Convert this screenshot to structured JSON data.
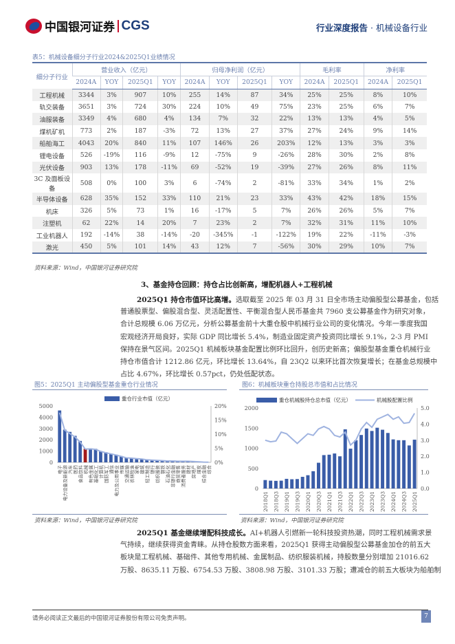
{
  "header": {
    "logo_cn": "中国银河证券",
    "logo_en": "CGS",
    "report_type": "行业深度报告",
    "separator": "·",
    "industry": "机械设备行业"
  },
  "table": {
    "title": "表5：机械设备细分子行业2024&2025Q1业绩情况",
    "row_header": "细分子行业",
    "groups": [
      "营业收入（亿元）",
      "归母净利润（亿元）",
      "毛利率",
      "净利率"
    ],
    "subheaders": [
      "2024A",
      "YOY",
      "2025Q1",
      "YOY",
      "2024A",
      "YOY",
      "2025Q1",
      "YOY",
      "2024A",
      "2025Q1",
      "2024A",
      "2025Q1"
    ],
    "rows": [
      [
        "工程机械",
        "3344",
        "3%",
        "907",
        "10%",
        "255",
        "14%",
        "87",
        "34%",
        "25%",
        "25%",
        "8%",
        "10%"
      ],
      [
        "轨交装备",
        "3651",
        "3%",
        "724",
        "30%",
        "224",
        "10%",
        "49",
        "75%",
        "23%",
        "25%",
        "6%",
        "7%"
      ],
      [
        "油服装备",
        "3349",
        "4%",
        "680",
        "4%",
        "134",
        "7%",
        "32",
        "22%",
        "13%",
        "13%",
        "4%",
        "5%"
      ],
      [
        "煤机矿机",
        "773",
        "2%",
        "187",
        "-3%",
        "72",
        "13%",
        "27",
        "37%",
        "27%",
        "24%",
        "9%",
        "14%"
      ],
      [
        "船舶海工",
        "4043",
        "20%",
        "840",
        "11%",
        "107",
        "146%",
        "26",
        "203%",
        "12%",
        "13%",
        "3%",
        "3%"
      ],
      [
        "锂电设备",
        "526",
        "-19%",
        "116",
        "-9%",
        "12",
        "-75%",
        "9",
        "-26%",
        "28%",
        "30%",
        "2%",
        "8%"
      ],
      [
        "光伏设备",
        "903",
        "13%",
        "178",
        "-11%",
        "69",
        "-52%",
        "19",
        "-39%",
        "27%",
        "26%",
        "8%",
        "11%"
      ],
      [
        "3C 及面板设备",
        "508",
        "0%",
        "100",
        "3%",
        "6",
        "-74%",
        "2",
        "-81%",
        "33%",
        "34%",
        "1%",
        "2%"
      ],
      [
        "半导体设备",
        "628",
        "35%",
        "152",
        "33%",
        "110",
        "21%",
        "23",
        "33%",
        "43%",
        "42%",
        "18%",
        "15%"
      ],
      [
        "机床",
        "326",
        "5%",
        "73",
        "1%",
        "16",
        "-17%",
        "5",
        "7%",
        "26%",
        "26%",
        "5%",
        "7%"
      ],
      [
        "注塑机",
        "62",
        "22%",
        "14",
        "20%",
        "7",
        "23%",
        "2",
        "7%",
        "32%",
        "31%",
        "11%",
        "10%"
      ],
      [
        "工业机器人",
        "192",
        "-14%",
        "38",
        "-14%",
        "-20",
        "-345%",
        "-1",
        "-122%",
        "19%",
        "22%",
        "-11%",
        "-3%"
      ],
      [
        "激光",
        "450",
        "5%",
        "101",
        "14%",
        "43",
        "12%",
        "7",
        "-56%",
        "30%",
        "29%",
        "10%",
        "7%"
      ]
    ],
    "source": "资料来源：Wind，中国银河证券研究院"
  },
  "section": {
    "title": "3、基金持仓回顾：持仓占比创新高，增配机器人+工程机械",
    "para1": {
      "lead": "2025Q1 持仓市值环比高增。",
      "lines": [
        "选取截至 2025 年 03 月 31 日全市场主动偏股型公募基金，包括",
        "普通股票型、偏股混合型、灵活配置性、平衡混合型人民币基金共 7960 支公募基金作为研究对象，",
        "合计总规模 6.06 万亿元，分析公募基金前十大重仓股中机械行业公司的变化情况。今年一季度我国",
        "宏观经济开局良好，实际 GDP 同比增长 5.4%，制造业固定资产投资同比增长 9.1%，2-3 月 PMI",
        "保持在景气区间。2025Q1 机械板块基金配置比例环比回升，创历史新高；偏股型基金重仓机械行业",
        "持仓市值合计 1212.86 亿元，环比增长 13.64%，自 23Q2 以来环比首次恢复增长；在基金总规模中",
        "占比 4.67%，环比增长 0.57pct，仍处低配状态。"
      ]
    },
    "para2": {
      "lead": "2025Q1 基金继续增配科技成长。",
      "lines": [
        "AI+机器人引燃新一轮科技投资热潮，同时工程机械需求景",
        "气持续，继续获得资金青睐。从持仓股数方面来看，2025Q1 获得主动偏股型公募基金加仓的前五大",
        "板块是工程机械、基础件、其他专用机械、金属制品、纺织服装机械，持股数量分别增加 21016.62",
        "万股、8635.11 万股、6754.53 万股、3808.98 万股、3101.33 万股；遭减仓的前五大板块为船舶制"
      ]
    }
  },
  "chart_data": [
    {
      "type": "bar",
      "title": "图5：2025Q1 主动偏股型基金重仓行业情况",
      "categories": [
        "电子",
        "电力设备及新能源",
        "汽车",
        "医药",
        "食品饮料",
        "机械",
        "有色金属",
        "基础化工",
        "计算机",
        "国防军工",
        "通信",
        "电力及公用事业",
        "传媒",
        "交通运输",
        "农林牧渔",
        "家电",
        "建筑",
        "轻工制造",
        "银行",
        "纺织服装",
        "钢铁",
        "石油石化",
        "非银行金融",
        "商贸零售",
        "消费者服务",
        "建材",
        "房地产",
        "煤炭",
        "综合金融",
        "综合"
      ],
      "series": [
        {
          "name": "重仓行业市值（亿元）",
          "values": [
            4600,
            2900,
            2700,
            2350,
            1900,
            1213,
            1250,
            1200,
            1000,
            900,
            780,
            680,
            560,
            420,
            380,
            350,
            300,
            230,
            200,
            170,
            150,
            130,
            120,
            110,
            100,
            100,
            80,
            60,
            30,
            10
          ]
        },
        {
          "values": [
            17.6,
            11.4,
            10.2,
            9.0,
            7.2,
            4.7,
            4.8,
            4.6,
            3.9,
            3.4,
            3.0,
            2.6,
            2.1,
            1.6,
            1.5,
            1.3,
            1.2,
            0.9,
            0.8,
            0.7,
            0.6,
            0.5,
            0.5,
            0.4,
            0.4,
            0.4,
            0.3,
            0.2,
            0.1,
            0.05
          ],
          "axis": "right"
        }
      ],
      "highlight_category": "机械",
      "ylim": [
        0,
        5000
      ],
      "yticks": [
        0,
        1000,
        2000,
        3000,
        4000,
        5000
      ],
      "y2lim": [
        0,
        20
      ],
      "y2ticks": [
        "0%",
        "5%",
        "10%",
        "15%",
        "20%"
      ],
      "legend": "top",
      "colors": {
        "bar": "#3a5da8",
        "highlight": "#a31a1a",
        "line": "#9fb3e0"
      },
      "source": "资料来源：Wind，中国银河证券研究院"
    },
    {
      "type": "bar+line",
      "title": "图6：机械板块重仓持股总市值和占比情况",
      "categories": [
        "2018Q1",
        "2018Q2",
        "2018Q3",
        "2018Q4",
        "2019Q1",
        "2019Q2",
        "2019Q3",
        "2019Q4",
        "2020Q1",
        "2020Q2",
        "2020Q3",
        "2020Q4",
        "2021Q1",
        "2021Q2",
        "2021Q3",
        "2021Q4",
        "2022Q1",
        "2022Q2",
        "2022Q3",
        "2022Q4",
        "2023Q1",
        "2023Q2",
        "2023Q3",
        "2023Q4",
        "2024Q1",
        "2024Q2",
        "2024Q3",
        "2024Q4",
        "2025Q1"
      ],
      "tick_labels": [
        "2018Q1",
        "2018Q3",
        "2019Q1",
        "2019Q3",
        "2020Q1",
        "2020Q3",
        "2021Q1",
        "2021Q3",
        "2022Q1",
        "2022Q3",
        "2023Q1",
        "2023Q3",
        "2024Q1",
        "2024Q3",
        "2025Q1"
      ],
      "series": [
        {
          "name": "重仓机械股持仓总市值（亿元）",
          "values": [
            210,
            195,
            190,
            195,
            240,
            230,
            235,
            290,
            330,
            430,
            640,
            830,
            840,
            870,
            800,
            1470,
            990,
            1200,
            1330,
            1490,
            1430,
            1510,
            1460,
            1380,
            1220,
            1200,
            1200,
            1070,
            1213
          ]
        },
        {
          "name": "机械股配置比例",
          "values": [
            3.0,
            2.9,
            2.95,
            3.5,
            3.4,
            3.1,
            2.8,
            3.1,
            3.4,
            3.3,
            3.7,
            3.85,
            3.7,
            3.3,
            3.2,
            3.5,
            2.7,
            3.0,
            3.7,
            4.1,
            3.8,
            4.3,
            4.45,
            4.6,
            4.3,
            4.45,
            4.05,
            4.1,
            4.67
          ],
          "axis": "right"
        }
      ],
      "ylim": [
        0,
        2000
      ],
      "yticks": [
        0,
        500,
        1000,
        1500,
        2000
      ],
      "y2lim": [
        0,
        5
      ],
      "y2ticks": [
        "0.0%",
        "1.0%",
        "2.0%",
        "3.0%",
        "4.0%",
        "5.0%"
      ],
      "legend": "top",
      "colors": {
        "bar": "#3a5da8",
        "line": "#9fb3e0"
      },
      "source": "资料来源：Wind，中国银河证券研究院"
    }
  ],
  "footer": {
    "disclaimer": "请务必阅读正文最后的中国银河证券股份有限公司免责声明。",
    "page": "7"
  }
}
